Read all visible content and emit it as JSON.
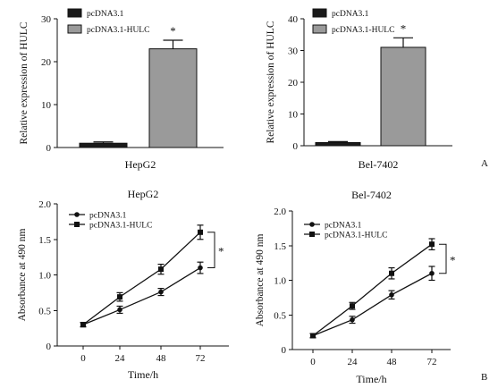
{
  "panel_labels": {
    "a": "A",
    "b": "B"
  },
  "colors": {
    "dark_bar": "#1a1a1a",
    "light_bar": "#9a9a9a",
    "ink": "#111111"
  },
  "chart_data": [
    {
      "type": "bar",
      "title": "",
      "xlabel": "HepG2",
      "ylabel": "Relative expression of HULC",
      "ylim": [
        0,
        30
      ],
      "yticks": [
        0,
        10,
        20,
        30
      ],
      "categories": [
        "pcDNA3.1",
        "pcDNA3.1-HULC"
      ],
      "values": [
        1.0,
        23.0
      ],
      "errors": [
        0.3,
        2.0
      ],
      "significance": "*",
      "legend": [
        {
          "name": "pcDNA3.1",
          "color": "#1a1a1a"
        },
        {
          "name": "pcDNA3.1-HULC",
          "color": "#9a9a9a"
        }
      ],
      "legend_position": "top-left"
    },
    {
      "type": "bar",
      "title": "",
      "xlabel": "Bel-7402",
      "ylabel": "Relative expression of HULC",
      "ylim": [
        0,
        40
      ],
      "yticks": [
        0,
        10,
        20,
        30,
        40
      ],
      "categories": [
        "pcDNA3.1",
        "pcDNA3.1-HULC"
      ],
      "values": [
        1.0,
        31.0
      ],
      "errors": [
        0.3,
        3.0
      ],
      "significance": "*",
      "legend": [
        {
          "name": "pcDNA3.1",
          "color": "#1a1a1a"
        },
        {
          "name": "pcDNA3.1-HULC",
          "color": "#9a9a9a"
        }
      ],
      "legend_position": "top-left"
    },
    {
      "type": "line",
      "title": "HepG2",
      "xlabel": "Time/h",
      "ylabel": "Absorbance at 490 nm",
      "ylim": [
        0,
        2.0
      ],
      "yticks": [
        "0",
        "0.5",
        "1.0",
        "1.5",
        "2.0"
      ],
      "x": [
        0,
        24,
        48,
        72
      ],
      "xticks": [
        "0",
        "24",
        "48",
        "72"
      ],
      "series": [
        {
          "name": "pcDNA3.1",
          "marker": "circle",
          "values": [
            0.3,
            0.51,
            0.76,
            1.1
          ],
          "errors": [
            0.03,
            0.05,
            0.05,
            0.08
          ]
        },
        {
          "name": "pcDNA3.1-HULC",
          "marker": "square",
          "values": [
            0.3,
            0.69,
            1.08,
            1.6
          ],
          "errors": [
            0.03,
            0.06,
            0.07,
            0.1
          ]
        }
      ],
      "significance": "*",
      "legend_position": "top-left"
    },
    {
      "type": "line",
      "title": "Bel-7402",
      "xlabel": "Time/h",
      "ylabel": "Absorbance at 490 nm",
      "ylim": [
        0,
        2.0
      ],
      "yticks": [
        "0",
        "0.5",
        "1.0",
        "1.5",
        "2.0"
      ],
      "x": [
        0,
        24,
        48,
        72
      ],
      "xticks": [
        "0",
        "24",
        "48",
        "72"
      ],
      "series": [
        {
          "name": "pcDNA3.1",
          "marker": "circle",
          "values": [
            0.2,
            0.43,
            0.79,
            1.1
          ],
          "errors": [
            0.03,
            0.05,
            0.06,
            0.1
          ]
        },
        {
          "name": "pcDNA3.1-HULC",
          "marker": "square",
          "values": [
            0.2,
            0.63,
            1.1,
            1.52
          ],
          "errors": [
            0.03,
            0.05,
            0.08,
            0.08
          ]
        }
      ],
      "significance": "*",
      "legend_position": "top-left"
    }
  ]
}
